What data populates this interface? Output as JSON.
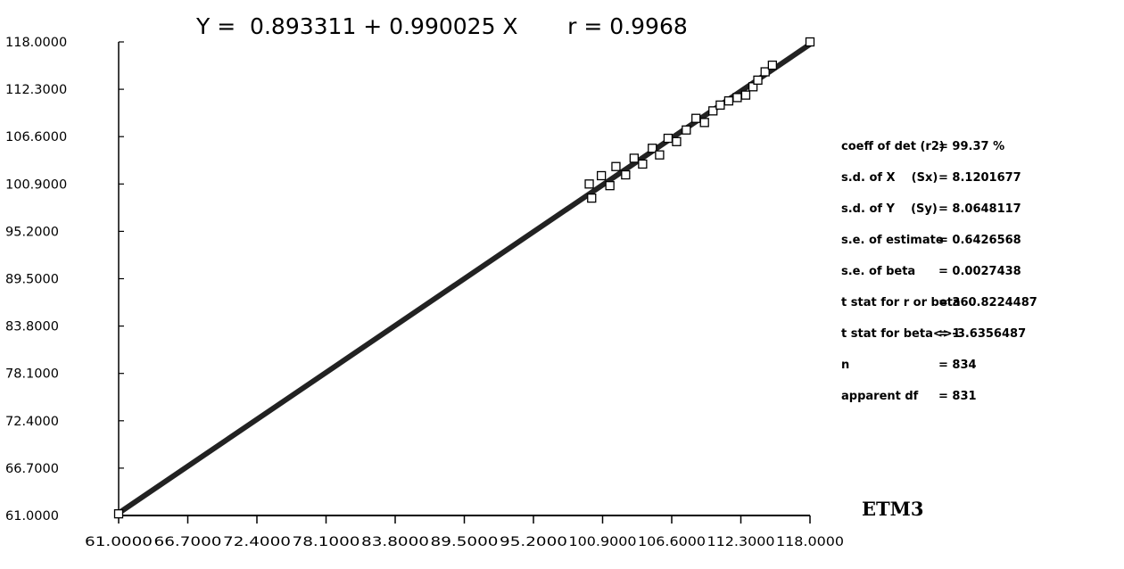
{
  "chart_data": {
    "type": "scatter",
    "title": "Y =  0.893311 + 0.990025 X       r = 0.9968",
    "xlabel": "",
    "ylabel": "",
    "xlim": [
      61.0,
      118.0
    ],
    "ylim": [
      61.0,
      118.0
    ],
    "x_ticks": [
      "61.0000",
      "66.7000",
      "72.4000",
      "78.1000",
      "83.8000",
      "89.5000",
      "95.2000",
      "100.9000",
      "106.6000",
      "112.3000",
      "118.0000"
    ],
    "y_ticks": [
      "118.0000",
      "112.3000",
      "106.6000",
      "100.9000",
      "95.2000",
      "89.5000",
      "83.8000",
      "78.1000",
      "72.4000",
      "66.7000",
      "61.0000"
    ],
    "regression_line": {
      "intercept": 0.893311,
      "slope": 0.990025,
      "x_range": [
        61.0,
        118.0
      ]
    },
    "series": [
      {
        "marker": "square",
        "points": [
          [
            61.0,
            61.2
          ],
          [
            99.8,
            100.9
          ],
          [
            100.0,
            99.2
          ],
          [
            100.8,
            101.9
          ],
          [
            101.5,
            100.7
          ],
          [
            102.0,
            103.0
          ],
          [
            102.8,
            102.0
          ],
          [
            103.5,
            104.0
          ],
          [
            104.2,
            103.3
          ],
          [
            105.0,
            105.2
          ],
          [
            105.6,
            104.4
          ],
          [
            106.3,
            106.4
          ],
          [
            107.0,
            106.0
          ],
          [
            107.8,
            107.4
          ],
          [
            108.6,
            108.8
          ],
          [
            109.3,
            108.3
          ],
          [
            110.0,
            109.7
          ],
          [
            110.6,
            110.4
          ],
          [
            111.3,
            110.9
          ],
          [
            112.0,
            111.3
          ],
          [
            112.7,
            111.6
          ],
          [
            113.3,
            112.6
          ],
          [
            113.7,
            113.4
          ],
          [
            114.3,
            114.4
          ],
          [
            114.9,
            115.2
          ],
          [
            118.0,
            118.0
          ]
        ]
      }
    ]
  },
  "stats": [
    {
      "label": "coeff of det (r2)",
      "value": "= 99.37 %"
    },
    {
      "label": "s.d. of X    (Sx)",
      "value": "= 8.1201677"
    },
    {
      "label": "s.d. of Y    (Sy)",
      "value": "= 8.0648117"
    },
    {
      "label": "s.e. of estimate",
      "value": "= 0.6426568"
    },
    {
      "label": "s.e. of beta",
      "value": "= 0.0027438"
    },
    {
      "label": "t stat for r or beta",
      "value": "= 360.8224487"
    },
    {
      "label": "t stat for beta<>1",
      "value": "= -3.6356487"
    },
    {
      "label": "n",
      "value": "= 834"
    },
    {
      "label": "apparent df",
      "value": "= 831"
    }
  ],
  "dataset_label": "ETM3",
  "colors": {
    "line": "#222222",
    "axis": "#000000",
    "marker_stroke": "#000000",
    "marker_fill": "#ffffff",
    "background": "#ffffff"
  }
}
